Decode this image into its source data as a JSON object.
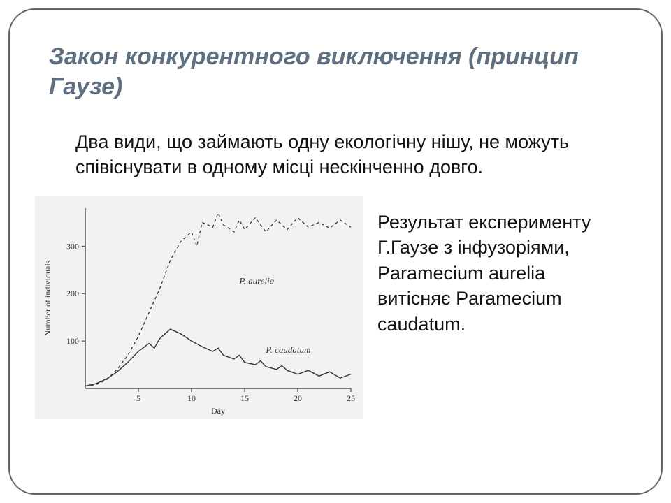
{
  "title": "Закон конкурентного виключення (принцип Гаузе)",
  "body": "Два види, що займають одну екологічну нішу, не можуть співіснувати в одному місці нескінченно довго.",
  "caption": "Результат експерименту Г.Гаузе з інфузоріями, Paramecium aurelia витісняє Paramecium caudatum.",
  "chart": {
    "type": "line",
    "background_color": "#f2f2f0",
    "axis_color": "#333333",
    "xlabel": "Day",
    "ylabel": "Number of individuals",
    "xlim": [
      0,
      25
    ],
    "ylim": [
      0,
      380
    ],
    "xticks": [
      5,
      10,
      15,
      20,
      25
    ],
    "yticks": [
      100,
      200,
      300
    ],
    "label_fontsize": 12,
    "tick_fontsize": 12,
    "series": [
      {
        "name": "P. aurelia",
        "label_x": 14.5,
        "label_y": 220,
        "style": "dashed",
        "color": "#333333",
        "line_width": 1.3,
        "data": [
          [
            0,
            5
          ],
          [
            1,
            8
          ],
          [
            2,
            18
          ],
          [
            3,
            40
          ],
          [
            4,
            70
          ],
          [
            5,
            110
          ],
          [
            6,
            160
          ],
          [
            7,
            210
          ],
          [
            8,
            270
          ],
          [
            9,
            310
          ],
          [
            10,
            330
          ],
          [
            10.5,
            300
          ],
          [
            11,
            350
          ],
          [
            12,
            340
          ],
          [
            12.5,
            370
          ],
          [
            13,
            345
          ],
          [
            14,
            330
          ],
          [
            14.5,
            355
          ],
          [
            15,
            335
          ],
          [
            16,
            360
          ],
          [
            17,
            330
          ],
          [
            18,
            355
          ],
          [
            19,
            335
          ],
          [
            20,
            360
          ],
          [
            21,
            340
          ],
          [
            22,
            350
          ],
          [
            23,
            338
          ],
          [
            24,
            355
          ],
          [
            25,
            340
          ]
        ]
      },
      {
        "name": "P. caudatum",
        "label_x": 17,
        "label_y": 75,
        "style": "solid",
        "color": "#333333",
        "line_width": 1.4,
        "data": [
          [
            0,
            5
          ],
          [
            1,
            10
          ],
          [
            2,
            20
          ],
          [
            3,
            35
          ],
          [
            4,
            55
          ],
          [
            5,
            78
          ],
          [
            6,
            95
          ],
          [
            6.5,
            85
          ],
          [
            7,
            105
          ],
          [
            8,
            125
          ],
          [
            9,
            115
          ],
          [
            10,
            100
          ],
          [
            11,
            88
          ],
          [
            12,
            78
          ],
          [
            12.5,
            85
          ],
          [
            13,
            70
          ],
          [
            14,
            62
          ],
          [
            14.5,
            70
          ],
          [
            15,
            55
          ],
          [
            16,
            50
          ],
          [
            16.5,
            58
          ],
          [
            17,
            46
          ],
          [
            18,
            40
          ],
          [
            18.5,
            48
          ],
          [
            19,
            38
          ],
          [
            20,
            30
          ],
          [
            21,
            38
          ],
          [
            22,
            26
          ],
          [
            23,
            35
          ],
          [
            24,
            22
          ],
          [
            25,
            30
          ]
        ]
      }
    ]
  }
}
